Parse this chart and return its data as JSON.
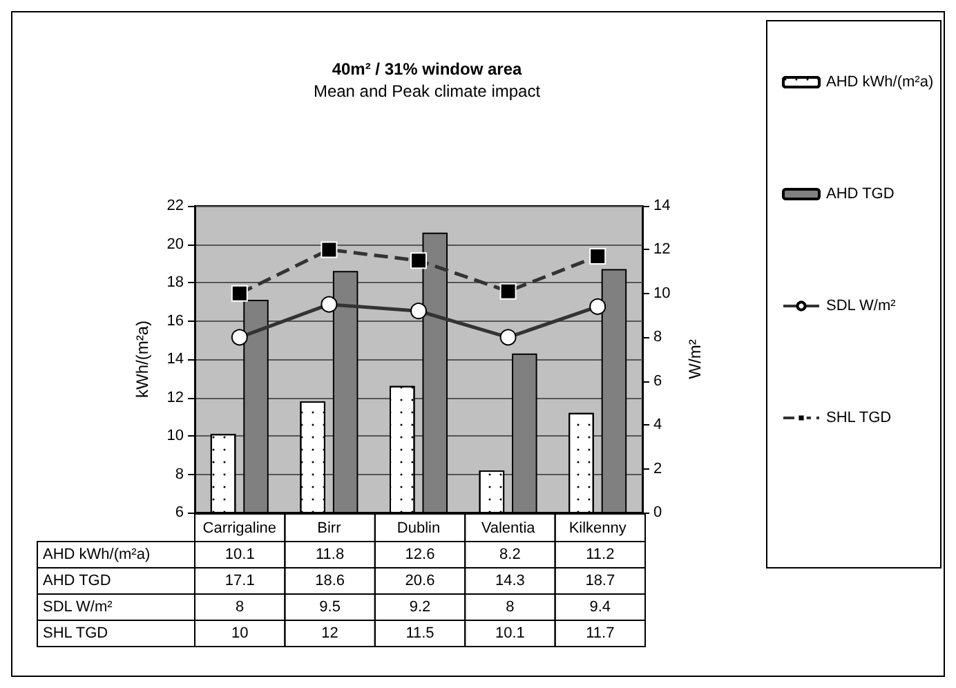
{
  "chart_data": {
    "type": "bar",
    "title": "40m² / 31% window area",
    "subtitle": "Mean and Peak climate impact",
    "ylabel": "kWh/(m²a)",
    "y2label": "W/m²",
    "categories": [
      "Carrigaline",
      "Birr",
      "Dublin",
      "Valentia",
      "Kilkenny"
    ],
    "series": [
      {
        "name": "AHD kWh/(m²a)",
        "color": "#ffffff",
        "values": [
          10.1,
          11.8,
          12.6,
          8.2,
          11.2
        ]
      },
      {
        "name": "AHD TGD",
        "color": "#808080",
        "values": [
          17.1,
          18.6,
          20.6,
          14.3,
          18.7
        ]
      },
      {
        "name": "SDL W/m²",
        "type": "line",
        "axis": "y2",
        "color": "#333333",
        "marker": "circle",
        "line_style": "solid",
        "values": [
          8,
          9.5,
          9.2,
          8,
          9.4
        ]
      },
      {
        "name": "SHL TGD",
        "type": "line",
        "axis": "y2",
        "color": "#333333",
        "marker": "square",
        "line_style": "dashed",
        "values": [
          10,
          12,
          11.5,
          10.1,
          11.7
        ]
      }
    ],
    "ylim": [
      6,
      22
    ],
    "yticks": [
      6,
      8,
      10,
      12,
      14,
      16,
      18,
      20,
      22
    ],
    "y2lim": [
      0,
      14
    ],
    "y2ticks": [
      0,
      2,
      4,
      6,
      8,
      10,
      12,
      14
    ],
    "grid": "y",
    "legend": "right",
    "data_labels": true
  }
}
